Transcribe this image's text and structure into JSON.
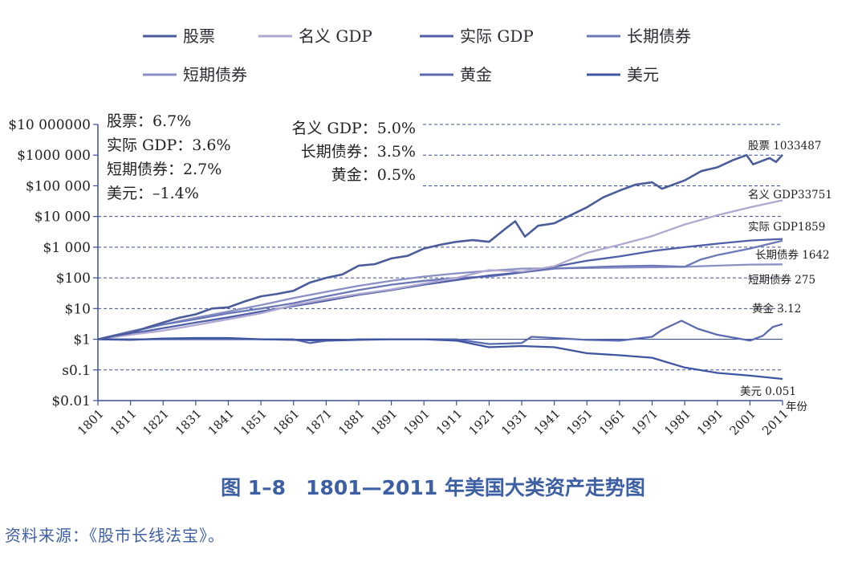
{
  "chart_data": {
    "type": "line",
    "yscale": "log",
    "ylim": [
      0.01,
      10000000
    ],
    "xlim": [
      1801,
      2011
    ],
    "xlabel": "年份",
    "ylabel": "",
    "grid": "dashed horizontal",
    "y_ticks": [
      {
        "value": 10000000,
        "label": "$10 000000"
      },
      {
        "value": 1000000,
        "label": "$1000 000"
      },
      {
        "value": 100000,
        "label": "$100 000"
      },
      {
        "value": 10000,
        "label": "$10 000"
      },
      {
        "value": 1000,
        "label": "$1 000"
      },
      {
        "value": 100,
        "label": "$100"
      },
      {
        "value": 10,
        "label": "$10"
      },
      {
        "value": 1,
        "label": "$1"
      },
      {
        "value": 0.1,
        "label": "s0.1"
      },
      {
        "value": 0.01,
        "label": "$0.01"
      }
    ],
    "x_ticks": [
      "1801",
      "1811",
      "1821",
      "1831",
      "1841",
      "1851",
      "1861",
      "1871",
      "1881",
      "1891",
      "1901",
      "1911",
      "1921",
      "1931",
      "1941",
      "1951",
      "1961",
      "1971",
      "1981",
      "1991",
      "2001",
      "2011"
    ],
    "legend": [
      "股票",
      "名义 GDP",
      "实际 GDP",
      "长期债券",
      "短期债券",
      "黄金",
      "美元"
    ],
    "rates_left": [
      "股票：6.7%",
      "实际 GDP：3.6%",
      "短期债券：2.7%",
      "美元：–1.4%"
    ],
    "rates_right": [
      "名义 GDP：5.0%",
      "长期债券：3.5%",
      "黄金：0.5%"
    ],
    "series": [
      {
        "name": "股票",
        "color": "#4a5c9c",
        "end_label": "股票 1033487",
        "x": [
          1801,
          1806,
          1811,
          1816,
          1821,
          1826,
          1831,
          1836,
          1841,
          1846,
          1851,
          1856,
          1861,
          1866,
          1871,
          1876,
          1881,
          1886,
          1891,
          1896,
          1901,
          1906,
          1911,
          1916,
          1921,
          1926,
          1929,
          1932,
          1936,
          1941,
          1946,
          1951,
          1956,
          1961,
          1966,
          1971,
          1974,
          1981,
          1986,
          1991,
          1996,
          2000,
          2002,
          2007,
          2009,
          2011
        ],
        "values": [
          1,
          1.3,
          1.6,
          2.4,
          3.5,
          5,
          6.5,
          10,
          11,
          17,
          25,
          30,
          38,
          70,
          100,
          130,
          250,
          280,
          430,
          520,
          900,
          1200,
          1500,
          1700,
          1500,
          4000,
          7000,
          2200,
          5000,
          6000,
          11000,
          20000,
          42000,
          70000,
          110000,
          130000,
          80000,
          150000,
          300000,
          400000,
          700000,
          1000000,
          500000,
          800000,
          600000,
          1033487
        ]
      },
      {
        "name": "名义 GDP",
        "color": "#b1a8d2",
        "end_label": "名义 GDP33751",
        "x": [
          1801,
          1811,
          1821,
          1831,
          1841,
          1851,
          1861,
          1871,
          1881,
          1891,
          1901,
          1911,
          1921,
          1931,
          1941,
          1951,
          1961,
          1971,
          1981,
          1991,
          2001,
          2011
        ],
        "values": [
          1,
          1.4,
          1.9,
          2.9,
          4.5,
          7,
          13,
          20,
          30,
          42,
          65,
          100,
          180,
          160,
          240,
          650,
          1200,
          2300,
          5500,
          11000,
          20000,
          33751
        ]
      },
      {
        "name": "实际 GDP",
        "color": "#4f5fa8",
        "end_label": "实际 GDP1859",
        "x": [
          1801,
          1811,
          1821,
          1831,
          1841,
          1851,
          1861,
          1871,
          1881,
          1891,
          1901,
          1911,
          1921,
          1931,
          1941,
          1951,
          1961,
          1971,
          1981,
          1991,
          2001,
          2011
        ],
        "values": [
          1,
          1.5,
          2.3,
          3.5,
          5.2,
          8,
          12,
          18,
          28,
          40,
          60,
          85,
          120,
          150,
          230,
          360,
          500,
          750,
          1000,
          1300,
          1650,
          1859
        ]
      },
      {
        "name": "长期债券",
        "color": "#6a78b8",
        "end_label": "长期债券 1642",
        "x": [
          1801,
          1811,
          1821,
          1831,
          1841,
          1851,
          1861,
          1871,
          1881,
          1891,
          1901,
          1911,
          1921,
          1931,
          1941,
          1951,
          1961,
          1971,
          1981,
          1986,
          1991,
          2001,
          2011
        ],
        "values": [
          1,
          1.8,
          3,
          4.5,
          7,
          10,
          15,
          25,
          40,
          60,
          80,
          100,
          110,
          150,
          200,
          220,
          240,
          250,
          230,
          400,
          550,
          900,
          1642
        ]
      },
      {
        "name": "短期债券",
        "color": "#8a8fc4",
        "end_label": "短期债券 275",
        "x": [
          1801,
          1811,
          1821,
          1831,
          1841,
          1851,
          1861,
          1871,
          1881,
          1891,
          1901,
          1911,
          1921,
          1931,
          1941,
          1951,
          1961,
          1971,
          1981,
          1991,
          2001,
          2011
        ],
        "values": [
          1,
          1.7,
          3,
          5,
          8,
          13,
          22,
          35,
          55,
          80,
          110,
          140,
          170,
          200,
          205,
          210,
          215,
          220,
          230,
          250,
          270,
          275
        ]
      },
      {
        "name": "黄金",
        "color": "#5a6ab0",
        "end_label": "黄金 3.12",
        "x": [
          1801,
          1811,
          1821,
          1831,
          1841,
          1851,
          1861,
          1866,
          1871,
          1881,
          1891,
          1901,
          1911,
          1921,
          1931,
          1934,
          1941,
          1951,
          1961,
          1971,
          1974,
          1980,
          1985,
          1991,
          2001,
          2005,
          2008,
          2011
        ],
        "values": [
          1,
          1,
          1,
          1,
          1,
          1,
          1,
          0.75,
          0.9,
          1,
          1,
          1,
          1,
          0.7,
          0.75,
          1.2,
          1.1,
          0.95,
          0.9,
          1.2,
          2,
          4,
          2.2,
          1.4,
          0.9,
          1.3,
          2.5,
          3.12
        ]
      },
      {
        "name": "美元",
        "color": "#3e56a0",
        "end_label": "美元 0.051",
        "x": [
          1801,
          1811,
          1821,
          1831,
          1841,
          1851,
          1861,
          1871,
          1881,
          1891,
          1901,
          1911,
          1921,
          1931,
          1941,
          1951,
          1961,
          1971,
          1981,
          1991,
          2001,
          2011
        ],
        "values": [
          1,
          0.95,
          1.05,
          1.1,
          1.1,
          1.0,
          0.95,
          0.9,
          0.95,
          1.0,
          1.0,
          0.9,
          0.55,
          0.6,
          0.55,
          0.35,
          0.3,
          0.25,
          0.12,
          0.08,
          0.065,
          0.051
        ]
      }
    ]
  },
  "caption": "图 1–8　1801—2011 年美国大类资产走势图",
  "source": "资料来源：《股市长线法宝》。"
}
